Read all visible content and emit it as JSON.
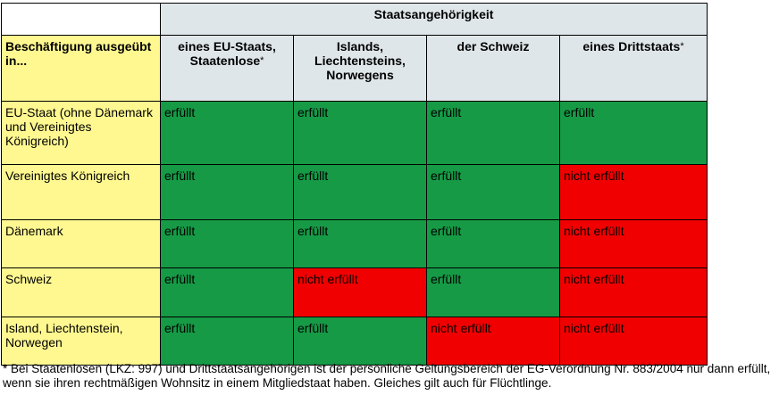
{
  "header": {
    "super_title": "Staatsangehörigkeit",
    "row_title": "Beschäftigung ausgeübt in...",
    "columns": [
      {
        "label": "eines EU-Staats, Staatenlose",
        "star": "*"
      },
      {
        "label": "Islands, Liechtensteins, Norwegens",
        "star": ""
      },
      {
        "label": "der Schweiz",
        "star": ""
      },
      {
        "label": "eines Drittstaats",
        "star": "*"
      }
    ]
  },
  "rows": [
    {
      "label": "EU-Staat (ohne Dänemark und Vereinigtes Königreich)",
      "cells": [
        {
          "text": "erfüllt",
          "status": "ok"
        },
        {
          "text": "erfüllt",
          "status": "ok"
        },
        {
          "text": "erfüllt",
          "status": "ok"
        },
        {
          "text": "erfüllt",
          "status": "ok"
        }
      ]
    },
    {
      "label": "Vereinigtes Königreich",
      "cells": [
        {
          "text": "erfüllt",
          "status": "ok"
        },
        {
          "text": "erfüllt",
          "status": "ok"
        },
        {
          "text": "erfüllt",
          "status": "ok"
        },
        {
          "text": "nicht erfüllt",
          "status": "no"
        }
      ]
    },
    {
      "label": "Dänemark",
      "cells": [
        {
          "text": "erfüllt",
          "status": "ok"
        },
        {
          "text": "erfüllt",
          "status": "ok"
        },
        {
          "text": "erfüllt",
          "status": "ok"
        },
        {
          "text": "nicht erfüllt",
          "status": "no"
        }
      ]
    },
    {
      "label": "Schweiz",
      "cells": [
        {
          "text": "erfüllt",
          "status": "ok"
        },
        {
          "text": "nicht erfüllt",
          "status": "no"
        },
        {
          "text": "erfüllt",
          "status": "ok"
        },
        {
          "text": "nicht erfüllt",
          "status": "no"
        }
      ]
    },
    {
      "label": "Island, Liechtenstein, Norwegen",
      "cells": [
        {
          "text": "erfüllt",
          "status": "ok"
        },
        {
          "text": "erfüllt",
          "status": "ok"
        },
        {
          "text": "nicht erfüllt",
          "status": "no"
        },
        {
          "text": "nicht erfüllt",
          "status": "no"
        }
      ]
    }
  ],
  "footnote": "* Bei Staatenlosen (LKZ: 997) und Drittstaatsangehörigen ist der persönliche Geltungsbereich der EG-Verordnung Nr. 883/2004 nur dann erfüllt, wenn sie ihren rechtmäßigen Wohnsitz in einem Mitgliedstaat haben. Gleiches gilt auch für Flüchtlinge.",
  "colors": {
    "ok": "#169a46",
    "no": "#f00000",
    "row_header": "#fff890",
    "col_header": "#dfe6e9"
  }
}
